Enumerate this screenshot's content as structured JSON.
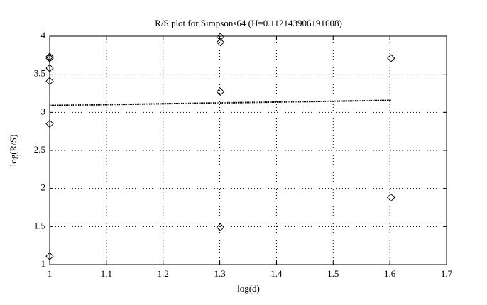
{
  "chart_data": {
    "type": "scatter",
    "title": "R/S plot for Simpsons64 (H=0.112143906191608)",
    "x_label": "log(d)",
    "y_label": "log(R/S)",
    "series": [
      {
        "mode": "markers",
        "marker": "diamond",
        "color": "#000000",
        "x": [
          1,
          1,
          1,
          1,
          1,
          1,
          1.301,
          1.301,
          1.301,
          1.301,
          1.602,
          1.602
        ],
        "values": [
          3.73,
          3.71,
          3.58,
          3.41,
          2.85,
          1.11,
          3.99,
          3.92,
          3.27,
          1.49,
          3.71,
          1.88
        ]
      },
      {
        "mode": "line",
        "dash": "dotted",
        "color": "#000000",
        "x": [
          1,
          1.602
        ],
        "values": [
          3.09,
          3.157
        ]
      }
    ],
    "xlim": [
      1,
      1.7
    ],
    "xticks": [
      1,
      1.1,
      1.2,
      1.3,
      1.4,
      1.5,
      1.6,
      1.7
    ],
    "ylim": [
      1,
      4
    ],
    "yticks": [
      1,
      1.5,
      2,
      2.5,
      3,
      3.5,
      4
    ],
    "grid": true
  }
}
